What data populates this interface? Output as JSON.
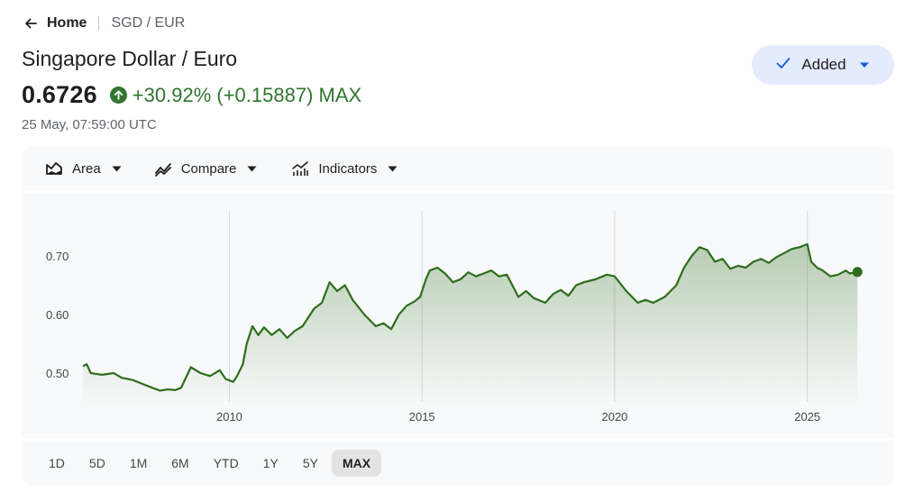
{
  "breadcrumb": {
    "home": "Home",
    "current": "SGD / EUR"
  },
  "title": "Singapore Dollar / Euro",
  "price": "0.6726",
  "change": "+30.92% (+0.15887) MAX",
  "timestamp": "25 May, 07:59:00 UTC",
  "watchlist_button": "Added",
  "toolbar": {
    "chart_type": "Area",
    "compare": "Compare",
    "indicators": "Indicators"
  },
  "ranges": [
    "1D",
    "5D",
    "1M",
    "6M",
    "YTD",
    "1Y",
    "5Y",
    "MAX"
  ],
  "active_range": "MAX",
  "colors": {
    "accent_green": "#31752f",
    "line": "#2f6d1d",
    "button_bg": "#e3ebfd",
    "button_icon": "#1a57d9"
  },
  "chart_data": {
    "type": "area",
    "title": "",
    "xlabel": "",
    "ylabel": "",
    "x_ticks": [
      "2010",
      "2015",
      "2020",
      "2025"
    ],
    "y_ticks": [
      "0.50",
      "0.60",
      "0.70"
    ],
    "ylim": [
      0.44,
      0.76
    ],
    "xlim": [
      2006.2,
      2026.5
    ],
    "grid": "vertical",
    "series": [
      {
        "x": [
          2006.2,
          2006.3,
          2006.4,
          2006.5,
          2006.7,
          2007.0,
          2007.2,
          2007.5,
          2007.8,
          2008.0,
          2008.2,
          2008.4,
          2008.6,
          2008.75,
          2009.0,
          2009.25,
          2009.5,
          2009.75,
          2009.9,
          2010.1,
          2010.2,
          2010.35,
          2010.45,
          2010.6,
          2010.75,
          2010.9,
          2011.1,
          2011.3,
          2011.5,
          2011.7,
          2011.9,
          2012.2,
          2012.4,
          2012.6,
          2012.8,
          2013.0,
          2013.2,
          2013.5,
          2013.8,
          2014.0,
          2014.2,
          2014.4,
          2014.6,
          2014.8,
          2014.95,
          2015.1,
          2015.2,
          2015.4,
          2015.6,
          2015.8,
          2016.0,
          2016.2,
          2016.4,
          2016.6,
          2016.8,
          2017.0,
          2017.2,
          2017.5,
          2017.7,
          2017.9,
          2018.2,
          2018.4,
          2018.6,
          2018.8,
          2019.0,
          2019.2,
          2019.5,
          2019.8,
          2020.0,
          2020.3,
          2020.6,
          2020.8,
          2021.0,
          2021.3,
          2021.6,
          2021.8,
          2022.0,
          2022.2,
          2022.4,
          2022.6,
          2022.8,
          2023.0,
          2023.2,
          2023.4,
          2023.6,
          2023.8,
          2024.0,
          2024.2,
          2024.4,
          2024.6,
          2024.8,
          2025.0,
          2025.1,
          2025.25,
          2025.4,
          2025.6,
          2025.8,
          2026.0,
          2026.1,
          2026.3
        ],
        "y": [
          0.512,
          0.515,
          0.5,
          0.499,
          0.497,
          0.5,
          0.492,
          0.488,
          0.48,
          0.475,
          0.47,
          0.472,
          0.471,
          0.475,
          0.51,
          0.5,
          0.495,
          0.505,
          0.49,
          0.485,
          0.495,
          0.515,
          0.55,
          0.58,
          0.565,
          0.578,
          0.565,
          0.575,
          0.56,
          0.572,
          0.58,
          0.61,
          0.62,
          0.655,
          0.64,
          0.65,
          0.625,
          0.6,
          0.58,
          0.585,
          0.575,
          0.6,
          0.615,
          0.622,
          0.63,
          0.66,
          0.675,
          0.68,
          0.67,
          0.655,
          0.66,
          0.672,
          0.665,
          0.67,
          0.675,
          0.665,
          0.668,
          0.63,
          0.64,
          0.628,
          0.62,
          0.635,
          0.642,
          0.632,
          0.65,
          0.655,
          0.66,
          0.668,
          0.665,
          0.64,
          0.62,
          0.625,
          0.62,
          0.63,
          0.65,
          0.68,
          0.7,
          0.715,
          0.71,
          0.69,
          0.695,
          0.678,
          0.683,
          0.68,
          0.69,
          0.695,
          0.688,
          0.698,
          0.705,
          0.712,
          0.715,
          0.72,
          0.69,
          0.68,
          0.675,
          0.665,
          0.668,
          0.675,
          0.67,
          0.6726
        ]
      }
    ]
  }
}
